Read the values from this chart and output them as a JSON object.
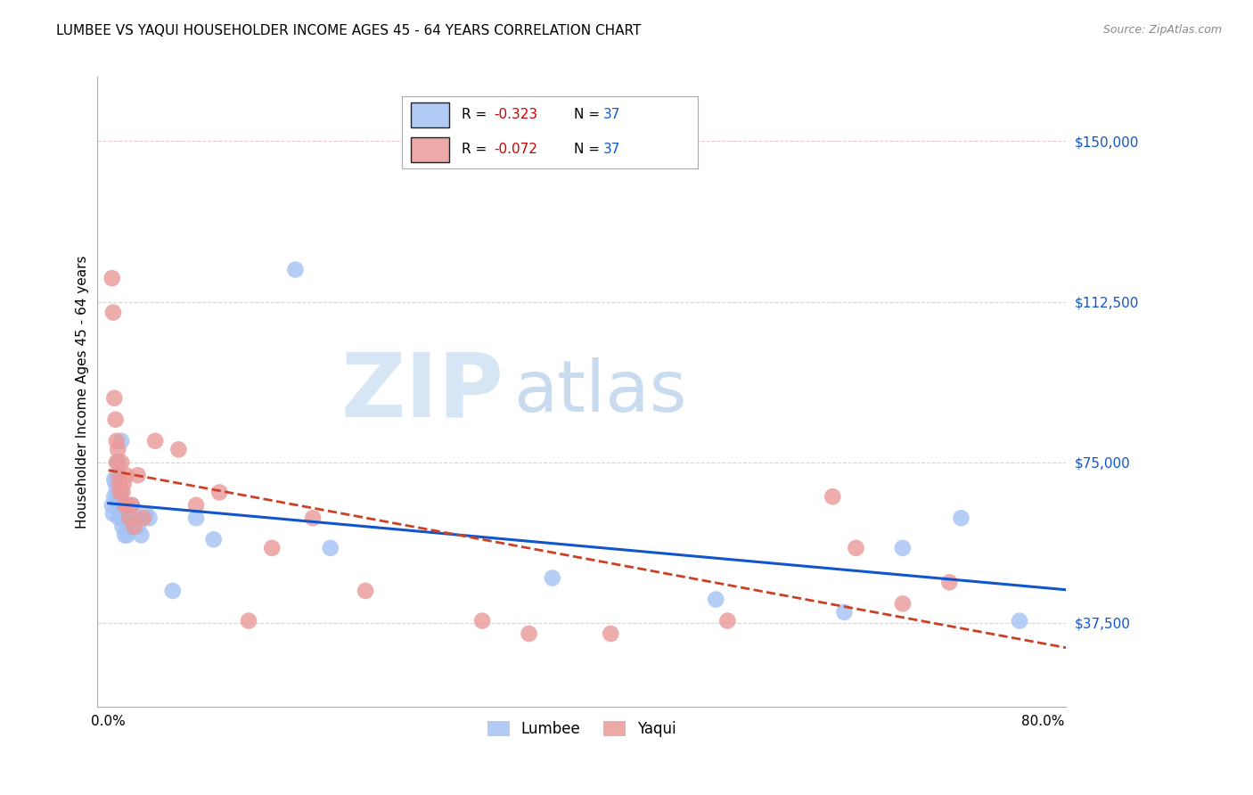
{
  "title": "LUMBEE VS YAQUI HOUSEHOLDER INCOME AGES 45 - 64 YEARS CORRELATION CHART",
  "source": "Source: ZipAtlas.com",
  "ylabel": "Householder Income Ages 45 - 64 years",
  "xlim": [
    -0.01,
    0.82
  ],
  "ylim": [
    18000,
    165000
  ],
  "yticks": [
    37500,
    75000,
    112500,
    150000
  ],
  "ytick_labels": [
    "$37,500",
    "$75,000",
    "$112,500",
    "$150,000"
  ],
  "xticks": [
    0.0,
    0.2,
    0.4,
    0.6,
    0.8
  ],
  "xtick_labels": [
    "0.0%",
    "",
    "",
    "",
    "80.0%"
  ],
  "legend_lumbee": "R = -0.323   N = 37",
  "legend_yaqui": "R = -0.072   N = 37",
  "lumbee_color": "#a4c2f4",
  "yaqui_color": "#ea9999",
  "lumbee_fill": "#a4c2f4",
  "yaqui_fill": "#ea9999",
  "lumbee_line_color": "#1155cc",
  "yaqui_line_color": "#cc4125",
  "watermark_zip": "ZIP",
  "watermark_atlas": "atlas",
  "watermark_color_zip": "#cfe2f3",
  "watermark_color_atlas": "#b8cfe8",
  "title_fontsize": 11,
  "source_fontsize": 9,
  "axis_label_color": "#1155cc",
  "legend_text_color": "#1155cc",
  "legend_R_color": "#cc0000",
  "lumbee_x": [
    0.003,
    0.004,
    0.005,
    0.005,
    0.006,
    0.007,
    0.007,
    0.008,
    0.008,
    0.009,
    0.01,
    0.01,
    0.011,
    0.012,
    0.013,
    0.014,
    0.015,
    0.016,
    0.017,
    0.018,
    0.02,
    0.022,
    0.025,
    0.028,
    0.032,
    0.035,
    0.055,
    0.075,
    0.09,
    0.16,
    0.19,
    0.38,
    0.52,
    0.63,
    0.68,
    0.73,
    0.78
  ],
  "lumbee_y": [
    65000,
    63000,
    71000,
    67000,
    70000,
    72000,
    68000,
    65000,
    75000,
    62000,
    63000,
    68000,
    80000,
    60000,
    62000,
    58000,
    62000,
    58000,
    60000,
    63000,
    65000,
    62000,
    60000,
    58000,
    63000,
    62000,
    45000,
    62000,
    57000,
    120000,
    55000,
    48000,
    43000,
    40000,
    55000,
    62000,
    38000
  ],
  "yaqui_x": [
    0.003,
    0.004,
    0.005,
    0.006,
    0.007,
    0.007,
    0.008,
    0.009,
    0.009,
    0.01,
    0.011,
    0.012,
    0.013,
    0.014,
    0.015,
    0.016,
    0.018,
    0.02,
    0.022,
    0.025,
    0.03,
    0.04,
    0.06,
    0.075,
    0.095,
    0.12,
    0.14,
    0.175,
    0.22,
    0.32,
    0.36,
    0.43,
    0.53,
    0.62,
    0.64,
    0.68,
    0.72
  ],
  "yaqui_y": [
    118000,
    110000,
    90000,
    85000,
    80000,
    75000,
    78000,
    72000,
    70000,
    68000,
    75000,
    68000,
    70000,
    65000,
    72000,
    65000,
    62000,
    65000,
    60000,
    72000,
    62000,
    80000,
    78000,
    65000,
    68000,
    38000,
    55000,
    62000,
    45000,
    38000,
    35000,
    35000,
    38000,
    67000,
    55000,
    42000,
    47000
  ]
}
